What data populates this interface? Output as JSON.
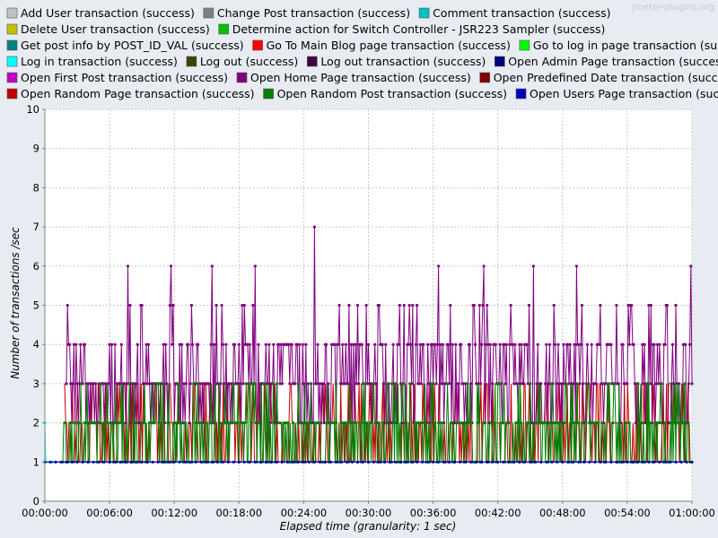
{
  "watermark": "jmeter-plugins.org",
  "chart_data": {
    "type": "line",
    "xlabel": "Elapsed time (granularity: 1 sec)",
    "ylabel": "Number of transactions /sec",
    "xlim_seconds": [
      0,
      3600
    ],
    "ylim": [
      0,
      10
    ],
    "x_ticks": [
      "00:00:00",
      "00:06:00",
      "00:12:00",
      "00:18:00",
      "00:24:00",
      "00:30:00",
      "00:36:00",
      "00:42:00",
      "00:48:00",
      "00:54:00",
      "01:00:00"
    ],
    "y_ticks": [
      "0",
      "1",
      "2",
      "3",
      "4",
      "5",
      "6",
      "7",
      "8",
      "9",
      "10"
    ],
    "grid": true,
    "legend_position": "top",
    "series": [
      {
        "name": "Add User transaction (success)",
        "color": "#c0c0c0"
      },
      {
        "name": "Change Post transaction (success)",
        "color": "#808080"
      },
      {
        "name": "Comment transaction (success)",
        "color": "#00c0c0"
      },
      {
        "name": "Delete User transaction (success)",
        "color": "#c0c000"
      },
      {
        "name": "Determine action for Switch Controller - JSR223 Sampler (success)",
        "color": "#00c000"
      },
      {
        "name": "Get post info by POST_ID_VAL (success)",
        "color": "#008080"
      },
      {
        "name": "Go To Main Blog page transaction (success)",
        "color": "#ff0000"
      },
      {
        "name": "Go to log in page transaction (success)",
        "color": "#00ff00"
      },
      {
        "name": "Log in transaction (success)",
        "color": "#00ffff"
      },
      {
        "name": "Log out (success)",
        "color": "#404000"
      },
      {
        "name": "Log out transaction (success)",
        "color": "#400040"
      },
      {
        "name": "Open Admin Page transaction (success)",
        "color": "#000080"
      },
      {
        "name": "Open First Post transaction (success)",
        "color": "#c000c0"
      },
      {
        "name": "Open Home Page transaction (success)",
        "color": "#800080"
      },
      {
        "name": "Open Predefined Date transaction (success)",
        "color": "#800000"
      },
      {
        "name": "Open Random Page transaction (success)",
        "color": "#c00000"
      },
      {
        "name": "Open Random Post transaction (success)",
        "color": "#008000"
      },
      {
        "name": "Open Users Page transaction (success)",
        "color": "#0000c0"
      }
    ],
    "notable_values": {
      "peak": {
        "series": "Open Home Page transaction (success)",
        "time": "00:25:00",
        "value": 7
      },
      "home_page_spikes_to_6": [
        "00:07:40",
        "00:11:40",
        "00:15:30",
        "00:19:30",
        "00:36:30",
        "00:40:40",
        "00:45:20",
        "00:49:20",
        "00:59:55"
      ],
      "home_page_typical_range": [
        2,
        5
      ],
      "random_post_typical_range": [
        1,
        3
      ],
      "admin_page_constant": 1,
      "login_start": {
        "time": "00:00:00",
        "value": 2
      }
    }
  }
}
